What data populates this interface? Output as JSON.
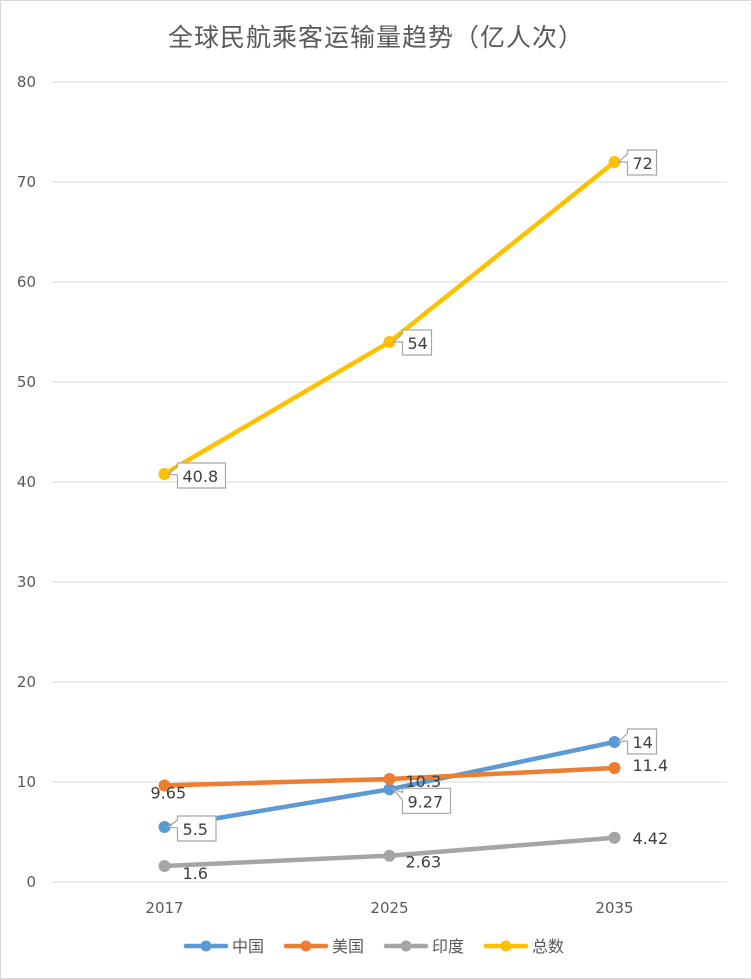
{
  "chart_data": {
    "type": "line",
    "title": "全球民航乘客运输量趋势（亿人次）",
    "xlabel": "",
    "ylabel": "",
    "categories": [
      "2017",
      "2025",
      "2035"
    ],
    "ylim": [
      0,
      80
    ],
    "yticks": [
      0,
      10,
      20,
      30,
      40,
      50,
      60,
      70,
      80
    ],
    "grid": true,
    "legend_position": "bottom",
    "series": [
      {
        "name": "中国",
        "color": "#5b9bd5",
        "values": [
          5.5,
          9.27,
          14
        ],
        "labels": [
          "5.5",
          "9.27",
          "14"
        ]
      },
      {
        "name": "美国",
        "color": "#ed7d31",
        "values": [
          9.65,
          10.3,
          11.4
        ],
        "labels": [
          "9.65",
          "10.3",
          "11.4"
        ]
      },
      {
        "name": "印度",
        "color": "#a5a5a5",
        "values": [
          1.6,
          2.63,
          4.42
        ],
        "labels": [
          "1.6",
          "2.63",
          "4.42"
        ]
      },
      {
        "name": "总数",
        "color": "#ffc000",
        "values": [
          40.8,
          54,
          72
        ],
        "labels": [
          "40.8",
          "54",
          "72"
        ]
      }
    ]
  }
}
